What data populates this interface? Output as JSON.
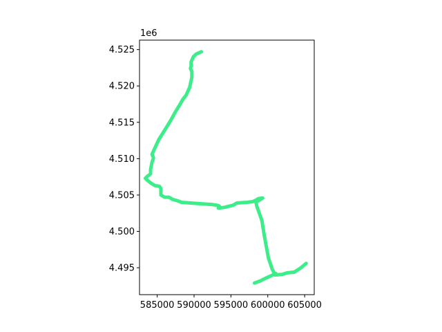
{
  "chart_data": {
    "type": "line",
    "title": "",
    "xlabel": "",
    "ylabel": "",
    "xlim": [
      582600,
      606300
    ],
    "ylim": [
      4491300,
      4526300
    ],
    "x_ticks": [
      585000,
      590000,
      595000,
      600000,
      605000
    ],
    "x_tick_labels": [
      "585000",
      "590000",
      "595000",
      "600000",
      "605000"
    ],
    "y_ticks": [
      4495000,
      4500000,
      4505000,
      4510000,
      4515000,
      4520000,
      4525000
    ],
    "y_tick_labels": [
      "4.495",
      "4.500",
      "4.505",
      "4.510",
      "4.515",
      "4.520",
      "4.525"
    ],
    "y_offset_label": "1e6",
    "grid": false,
    "legend": "none",
    "series": [
      {
        "color": "#3ded8a",
        "points": [
          [
            591000,
            4524700
          ],
          [
            590300,
            4524400
          ],
          [
            589900,
            4524000
          ],
          [
            589600,
            4523300
          ],
          [
            589600,
            4522700
          ],
          [
            589500,
            4522400
          ],
          [
            589700,
            4522000
          ],
          [
            589700,
            4521200
          ],
          [
            589400,
            4519800
          ],
          [
            588900,
            4518700
          ],
          [
            588500,
            4518200
          ],
          [
            588000,
            4517300
          ],
          [
            587400,
            4516300
          ],
          [
            586800,
            4515200
          ],
          [
            586000,
            4513900
          ],
          [
            585200,
            4512600
          ],
          [
            584300,
            4510600
          ],
          [
            584500,
            4510100
          ],
          [
            584300,
            4509500
          ],
          [
            584100,
            4508500
          ],
          [
            584100,
            4507900
          ],
          [
            583700,
            4507600
          ],
          [
            583400,
            4507300
          ],
          [
            583700,
            4507000
          ],
          [
            584200,
            4506600
          ],
          [
            584700,
            4506300
          ],
          [
            585300,
            4506200
          ],
          [
            585500,
            4505900
          ],
          [
            585500,
            4505000
          ],
          [
            586000,
            4504700
          ],
          [
            586600,
            4504700
          ],
          [
            587100,
            4504400
          ],
          [
            587800,
            4504200
          ],
          [
            588300,
            4504000
          ],
          [
            589500,
            4503900
          ],
          [
            591000,
            4503800
          ],
          [
            592400,
            4503700
          ],
          [
            593100,
            4503600
          ],
          [
            593400,
            4503500
          ],
          [
            593300,
            4503200
          ],
          [
            594100,
            4503300
          ],
          [
            595300,
            4503600
          ],
          [
            595800,
            4503900
          ],
          [
            597200,
            4504000
          ],
          [
            598000,
            4504100
          ],
          [
            598400,
            4504300
          ],
          [
            598700,
            4504500
          ],
          [
            599300,
            4504600
          ],
          [
            598400,
            4504000
          ],
          [
            598500,
            4503500
          ],
          [
            599200,
            4501500
          ],
          [
            599500,
            4499600
          ],
          [
            599800,
            4497900
          ],
          [
            600100,
            4496300
          ],
          [
            600600,
            4494800
          ],
          [
            601000,
            4494000
          ],
          [
            602000,
            4494100
          ],
          [
            602600,
            4494300
          ],
          [
            603600,
            4494400
          ],
          [
            604500,
            4495000
          ],
          [
            605200,
            4495600
          ]
        ]
      },
      {
        "color": "#3ded8a",
        "points": [
          [
            598200,
            4492900
          ],
          [
            599000,
            4493200
          ],
          [
            599800,
            4493600
          ],
          [
            601100,
            4494200
          ]
        ]
      }
    ]
  }
}
